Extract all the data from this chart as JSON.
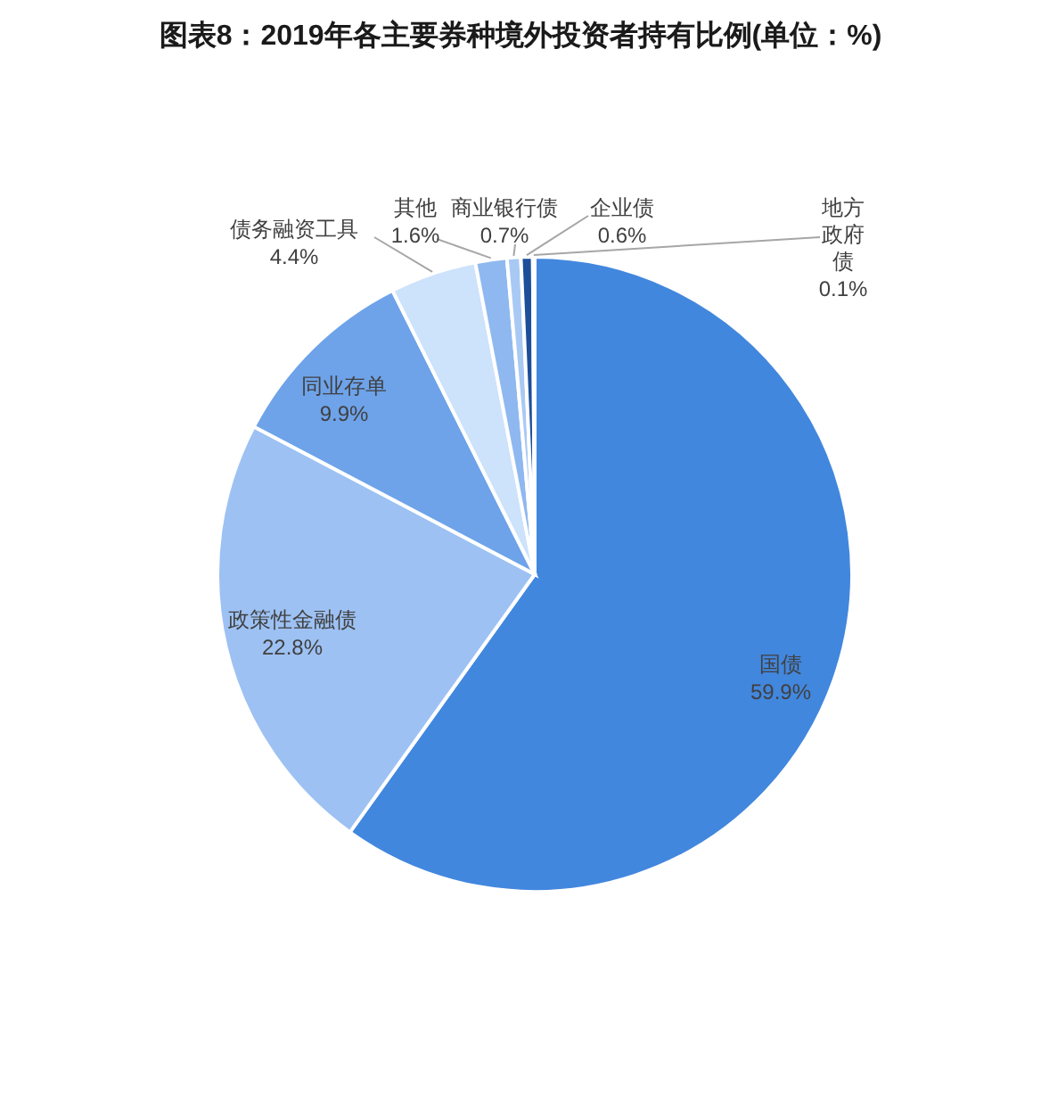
{
  "chart_data": {
    "type": "pie",
    "title": "图表8：2019年各主要券种境外投资者持有比例(单位：%)",
    "categories": [
      "国债",
      "政策性金融债",
      "同业存单",
      "债务融资工具",
      "其他",
      "商业银行债",
      "企业债",
      "地方政府债"
    ],
    "values": [
      59.9,
      22.8,
      9.9,
      4.4,
      1.6,
      0.7,
      0.6,
      0.1
    ],
    "value_labels": [
      "59.9%",
      "22.8%",
      "9.9%",
      "4.4%",
      "1.6%",
      "0.7%",
      "0.6%",
      "0.1%"
    ],
    "colors": [
      "#4287de",
      "#9dc1f3",
      "#6ea3ea",
      "#cde2fb",
      "#8fb8f0",
      "#a9c9f5",
      "#1d4e9a",
      "#2a63c0"
    ]
  }
}
